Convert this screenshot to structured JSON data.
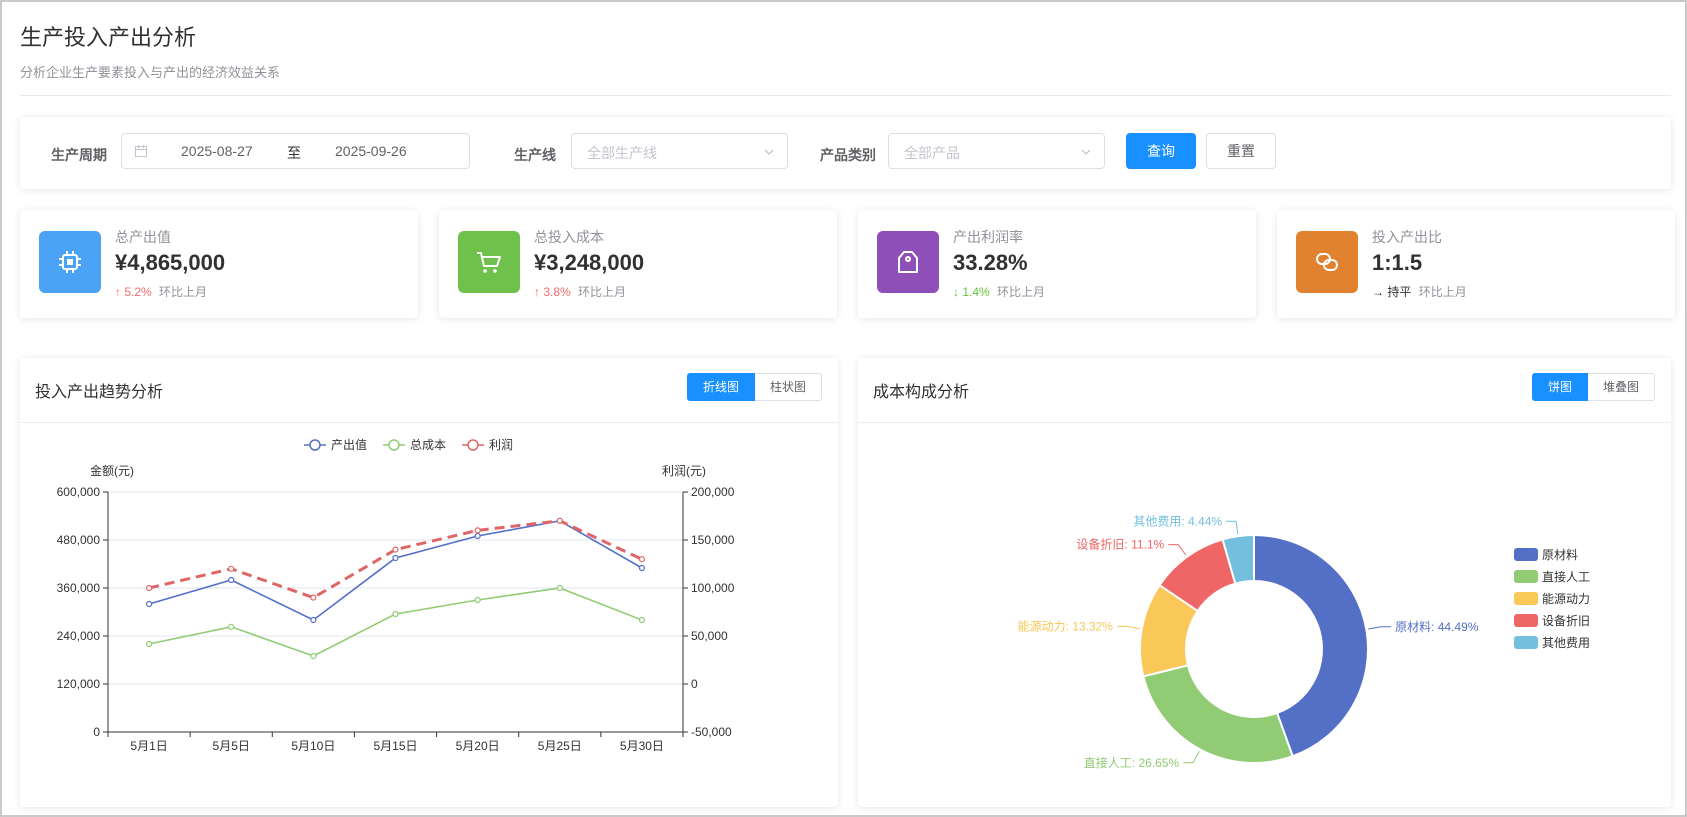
{
  "header": {
    "title": "生产投入产出分析",
    "subtitle": "分析企业生产要素投入与产出的经济效益关系"
  },
  "filters": {
    "period_label": "生产周期",
    "start_date": "2025-08-27",
    "range_separator": "至",
    "end_date": "2025-09-26",
    "line_label": "生产线",
    "line_placeholder": "全部生产线",
    "category_label": "产品类别",
    "category_placeholder": "全部产品",
    "query_button": "查询",
    "reset_button": "重置"
  },
  "stats": [
    {
      "label": "总产出值",
      "value": "¥4,865,000",
      "arrow": "↑",
      "change": "5.2%",
      "compare": "环比上月",
      "direction": "up",
      "color": "#4aa3f5",
      "icon": "chip-icon"
    },
    {
      "label": "总投入成本",
      "value": "¥3,248,000",
      "arrow": "↑",
      "change": "3.8%",
      "compare": "环比上月",
      "direction": "up",
      "color": "#6ec14a",
      "icon": "cart-icon"
    },
    {
      "label": "产出利润率",
      "value": "33.28%",
      "arrow": "↓",
      "change": "1.4%",
      "compare": "环比上月",
      "direction": "down",
      "color": "#8e4fb8",
      "icon": "tag-icon"
    },
    {
      "label": "投入产出比",
      "value": "1:1.5",
      "arrow": "→",
      "change": "持平",
      "compare": "环比上月",
      "direction": "flat",
      "color": "#e0822f",
      "icon": "link-icon"
    }
  ],
  "trend_panel": {
    "title": "投入产出趋势分析",
    "toggle": [
      "折线图",
      "柱状图"
    ],
    "active": 0
  },
  "cost_panel": {
    "title": "成本构成分析",
    "toggle": [
      "饼图",
      "堆叠图"
    ],
    "active": 0
  },
  "chart_data": [
    {
      "type": "line",
      "categories": [
        "5月1日",
        "5月5日",
        "5月10日",
        "5月15日",
        "5月20日",
        "5月25日",
        "5月30日"
      ],
      "ylabel": "金额(元)",
      "y2label": "利润(元)",
      "ylim": [
        0,
        600000
      ],
      "yticks": [
        "0",
        "120,000",
        "240,000",
        "360,000",
        "480,000",
        "600,000"
      ],
      "y2lim": [
        -50000,
        200000
      ],
      "y2ticks": [
        "-50,000",
        "0",
        "50,000",
        "100,000",
        "150,000",
        "200,000"
      ],
      "grid": true,
      "legend": "top-center",
      "series": [
        {
          "name": "产出值",
          "axis": "left",
          "color": "#5470c6",
          "dashed": false,
          "values": [
            320000,
            380000,
            280000,
            435000,
            490000,
            528000,
            410000
          ]
        },
        {
          "name": "总成本",
          "axis": "left",
          "color": "#91cc75",
          "dashed": false,
          "values": [
            220000,
            263000,
            190000,
            295000,
            330000,
            360000,
            280000
          ]
        },
        {
          "name": "利润",
          "axis": "right",
          "color": "#e06666",
          "dashed": true,
          "values": [
            100000,
            120000,
            90000,
            140000,
            160000,
            170000,
            130000
          ]
        }
      ]
    },
    {
      "type": "pie",
      "legend": "right",
      "slices": [
        {
          "name": "原材料",
          "value": 44.49,
          "label": "原材料: 44.49%",
          "color": "#5470c6"
        },
        {
          "name": "直接人工",
          "value": 26.65,
          "label": "直接人工: 26.65%",
          "color": "#91cc75"
        },
        {
          "name": "能源动力",
          "value": 13.32,
          "label": "能源动力: 13.32%",
          "color": "#fac858"
        },
        {
          "name": "设备折旧",
          "value": 11.1,
          "label": "设备折旧: 11.1%",
          "color": "#ee6666"
        },
        {
          "name": "其他费用",
          "value": 4.44,
          "label": "其他费用: 4.44%",
          "color": "#73c0de"
        }
      ]
    }
  ]
}
